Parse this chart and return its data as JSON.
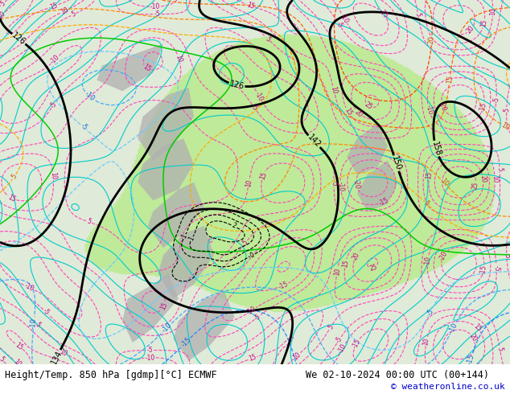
{
  "title_left": "Height/Temp. 850 hPa [gdmp][°C] ECMWF",
  "title_right": "We 02-10-2024 00:00 UTC (00+144)",
  "copyright": "© weatheronline.co.uk",
  "bg_color": "#ffffff",
  "bottom_bg": "#ffffff",
  "text_color": "#000000",
  "title_fontsize": 8.5,
  "copyright_fontsize": 8,
  "copyright_color": "#0000cc",
  "map_light_green": "#c8e8a0",
  "map_gray": "#b8b8b8",
  "map_bg": "#ddeedd",
  "contour_black_lw": 2.0,
  "contour_temp_lw": 0.9,
  "contour_slp_lw": 0.8,
  "contour_cyan_lw": 0.8
}
